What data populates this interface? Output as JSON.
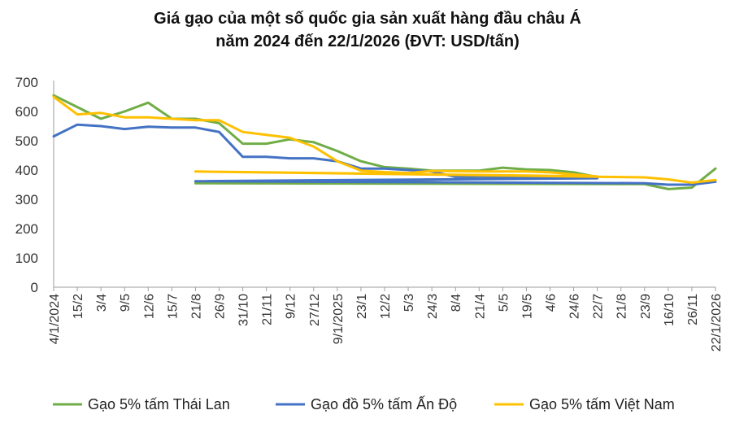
{
  "chart_data": {
    "type": "line",
    "title_line1": "Giá gạo của một số quốc gia sản xuất hàng đầu châu Á",
    "title_line2": "năm 2024 đến 22/1/2026 (ĐVT: USD/tấn)",
    "xlabel": "",
    "ylabel": "",
    "ylim": [
      0,
      700
    ],
    "yticks": [
      0,
      100,
      200,
      300,
      400,
      500,
      600,
      700
    ],
    "grid": false,
    "legend_position": "bottom",
    "x_start": "2024-01-04",
    "x_end": "2026-01-22",
    "x_tick_labels": [
      "4/1/2024",
      "15/2",
      "3/4",
      "9/5",
      "12/6",
      "15/7",
      "21/8",
      "26/9",
      "31/10",
      "21/11",
      "9/12",
      "27/12",
      "9/1/2025",
      "23/1",
      "12/2",
      "5/3",
      "24/3",
      "8/4",
      "21/4",
      "5/5",
      "19/5",
      "4/6",
      "24/6",
      "22/7",
      "21/8",
      "23/9",
      "16/10",
      "26/11",
      "22/1/2026"
    ],
    "series": [
      {
        "name": "Gạo 5% tấm Thái Lan",
        "color": "#70AD47",
        "points": [
          [
            "4/1/2024",
            655
          ],
          [
            "15/2",
            615
          ],
          [
            "3/4",
            575
          ],
          [
            "9/5",
            600
          ],
          [
            "12/6",
            630
          ],
          [
            "15/7",
            575
          ],
          [
            "21/8",
            575
          ],
          [
            "26/9",
            560
          ],
          [
            "31/10",
            490
          ],
          [
            "21/11",
            490
          ],
          [
            "9/12",
            505
          ],
          [
            "27/12",
            495
          ],
          [
            "9/1/2025",
            465
          ],
          [
            "23/1",
            430
          ],
          [
            "12/2",
            410
          ],
          [
            "5/3",
            405
          ],
          [
            "24/3",
            398
          ],
          [
            "8/4",
            398
          ],
          [
            "21/4",
            398
          ],
          [
            "5/5",
            408
          ],
          [
            "19/5",
            402
          ],
          [
            "4/6",
            400
          ],
          [
            "24/6",
            392
          ],
          [
            "22/7",
            376
          ],
          [
            "21/8",
            355
          ],
          [
            "23/9",
            352
          ],
          [
            "16/10",
            335
          ],
          [
            "26/11",
            340
          ],
          [
            "22/1/2026",
            405
          ]
        ]
      },
      {
        "name": "Gạo đồ 5% tấm Ấn Độ",
        "color": "#4472C4",
        "points": [
          [
            "4/1/2024",
            515
          ],
          [
            "15/2",
            555
          ],
          [
            "3/4",
            550
          ],
          [
            "9/5",
            540
          ],
          [
            "12/6",
            548
          ],
          [
            "15/7",
            545
          ],
          [
            "21/8",
            545
          ],
          [
            "26/9",
            530
          ],
          [
            "31/10",
            445
          ],
          [
            "21/11",
            445
          ],
          [
            "9/12",
            440
          ],
          [
            "27/12",
            440
          ],
          [
            "9/1/2025",
            430
          ],
          [
            "23/1",
            405
          ],
          [
            "12/2",
            405
          ],
          [
            "5/3",
            400
          ],
          [
            "24/3",
            395
          ],
          [
            "8/4",
            377
          ],
          [
            "21/4",
            378
          ],
          [
            "5/5",
            378
          ],
          [
            "19/5",
            374
          ],
          [
            "4/6",
            374
          ],
          [
            "24/6",
            374
          ],
          [
            "22/7",
            372
          ],
          [
            "21/8",
            362
          ],
          [
            "23/9",
            355
          ],
          [
            "16/10",
            350
          ],
          [
            "26/11",
            350
          ],
          [
            "22/1/2026",
            360
          ]
        ]
      },
      {
        "name": "Gạo 5% tấm Việt Nam",
        "color": "#FFC000",
        "points": [
          [
            "4/1/2024",
            650
          ],
          [
            "15/2",
            590
          ],
          [
            "3/4",
            595
          ],
          [
            "9/5",
            580
          ],
          [
            "12/6",
            580
          ],
          [
            "15/7",
            575
          ],
          [
            "21/8",
            570
          ],
          [
            "26/9",
            570
          ],
          [
            "31/10",
            530
          ],
          [
            "21/11",
            520
          ],
          [
            "9/12",
            510
          ],
          [
            "27/12",
            480
          ],
          [
            "9/1/2025",
            430
          ],
          [
            "23/1",
            398
          ],
          [
            "12/2",
            393
          ],
          [
            "5/3",
            390
          ],
          [
            "24/3",
            397
          ],
          [
            "8/4",
            396
          ],
          [
            "21/4",
            395
          ],
          [
            "5/5",
            395
          ],
          [
            "19/5",
            395
          ],
          [
            "4/6",
            392
          ],
          [
            "24/6",
            385
          ],
          [
            "22/7",
            378
          ],
          [
            "21/8",
            395
          ],
          [
            "23/9",
            375
          ],
          [
            "16/10",
            368
          ],
          [
            "26/11",
            357
          ],
          [
            "22/1/2026",
            366
          ]
        ]
      }
    ]
  }
}
